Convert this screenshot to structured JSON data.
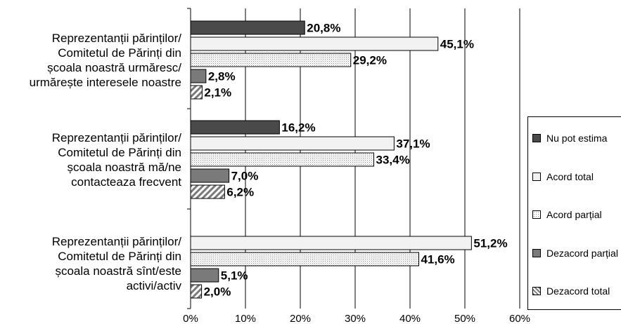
{
  "chart_data": {
    "type": "bar",
    "orientation": "horizontal",
    "categories": [
      [
        "Reprezentanții părinților/",
        "Comitetul de Părinți din",
        "școala noastră urmăresc/",
        "urmărește interesele noastre"
      ],
      [
        "Reprezentanții părinților/",
        "Comitetul de Părinți din",
        "școala noastră mă/ne",
        "contacteaza frecvent"
      ],
      [
        "Reprezentanții părinților/",
        "Comitetul de Părinți din",
        "școala noastră sînt/este",
        "activi/activ"
      ]
    ],
    "series": [
      {
        "name": "Nu pot estima",
        "values": [
          20.8,
          16.2,
          null
        ],
        "labels": [
          "20,8%",
          "16,2%",
          ""
        ],
        "color": "#4a4a4a",
        "pattern": "solid"
      },
      {
        "name": "Acord total",
        "values": [
          45.1,
          37.1,
          51.2
        ],
        "labels": [
          "45,1%",
          "37,1%",
          "51,2%"
        ],
        "color": "#f2f2f2",
        "pattern": "solid"
      },
      {
        "name": "Acord parțial",
        "values": [
          29.2,
          33.4,
          41.6
        ],
        "labels": [
          "29,2%",
          "33,4%",
          "41,6%"
        ],
        "color": "#ffffff",
        "pattern": "dots"
      },
      {
        "name": "Dezacord parțial",
        "values": [
          2.8,
          7.0,
          5.1
        ],
        "labels": [
          "2,8%",
          "7,0%",
          "5,1%"
        ],
        "color": "#7a7a7a",
        "pattern": "solid"
      },
      {
        "name": "Dezacord total",
        "values": [
          2.1,
          6.2,
          2.0
        ],
        "labels": [
          "2,1%",
          "6,2%",
          "2,0%"
        ],
        "color": "#ffffff",
        "pattern": "diagonal"
      }
    ],
    "x_ticks": [
      "0%",
      "10%",
      "20%",
      "30%",
      "40%",
      "50%",
      "60%"
    ],
    "xlim": [
      0,
      60
    ],
    "grid": true,
    "legend_position": "right"
  }
}
